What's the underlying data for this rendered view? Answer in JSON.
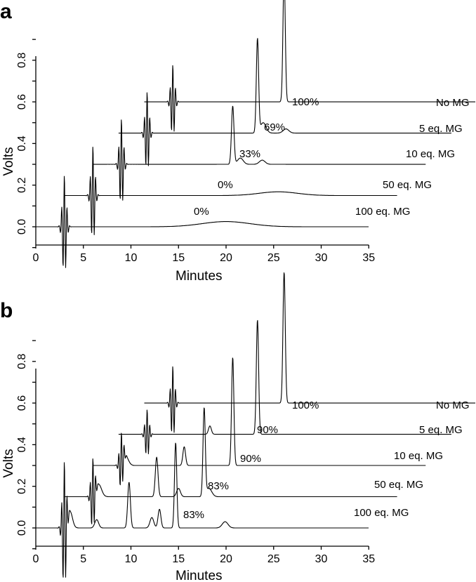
{
  "chart_data": [
    {
      "type": "line",
      "panel": "a",
      "xlabel": "Minutes",
      "ylabel": "Volts",
      "xlim": [
        0,
        35
      ],
      "ylim": [
        -0.1,
        0.9
      ],
      "x_ticks": [
        "0",
        "5",
        "10",
        "15",
        "20",
        "25",
        "30",
        "35"
      ],
      "y_ticks": [
        "0.0",
        "0.2",
        "0.4",
        "0.6",
        "0.8"
      ],
      "series": [
        {
          "name": "100 eq. MG",
          "percent": "0%",
          "baseline_volts": 0.0,
          "x_offset_min": 0.0,
          "x_end_min": 35.0,
          "peaks": [
            [
              3.0,
              0.25,
              0.15
            ],
            [
              20.0,
              0.025,
              2.5
            ]
          ]
        },
        {
          "name": "50 eq. MG",
          "percent": "0%",
          "baseline_volts": 0.15,
          "x_offset_min": 3.0,
          "x_end_min": 38.0,
          "peaks": [
            [
              3.0,
              0.24,
              0.15
            ],
            [
              22.5,
              0.018,
              2.0
            ]
          ]
        },
        {
          "name": "10 eq. MG",
          "percent": "33%",
          "baseline_volts": 0.3,
          "x_offset_min": 6.0,
          "x_end_min": 41.0,
          "peaks": [
            [
              3.0,
              0.22,
              0.15
            ],
            [
              14.7,
              0.28,
              0.13
            ],
            [
              15.5,
              0.03,
              0.3
            ],
            [
              17.8,
              0.02,
              0.3
            ]
          ]
        },
        {
          "name": "5 eq. MG",
          "percent": "69%",
          "baseline_volts": 0.45,
          "x_offset_min": 8.7,
          "x_end_min": 43.7,
          "peaks": [
            [
              3.0,
              0.2,
              0.15
            ],
            [
              14.6,
              0.45,
              0.12
            ],
            [
              15.2,
              0.05,
              0.3
            ],
            [
              17.6,
              0.02,
              0.3
            ]
          ]
        },
        {
          "name": "No MG",
          "percent": "100%",
          "baseline_volts": 0.6,
          "x_offset_min": 11.4,
          "x_end_min": 46.4,
          "peaks": [
            [
              3.0,
              0.18,
              0.15
            ],
            [
              14.7,
              0.62,
              0.12
            ]
          ]
        }
      ]
    },
    {
      "type": "line",
      "panel": "b",
      "xlabel": "Minutes",
      "ylabel": "Volts",
      "xlim": [
        0,
        35
      ],
      "ylim": [
        -0.1,
        0.9
      ],
      "x_ticks": [
        "0",
        "5",
        "10",
        "15",
        "20",
        "25",
        "30",
        "35"
      ],
      "y_ticks": [
        "0.0",
        "0.2",
        "0.4",
        "0.6",
        "0.8"
      ],
      "series": [
        {
          "name": "100 eq. MG",
          "percent": "83%",
          "baseline_volts": 0.0,
          "x_offset_min": 0.0,
          "x_end_min": 35.0,
          "peaks": [
            [
              3.0,
              0.32,
              0.12
            ],
            [
              3.6,
              0.08,
              0.25
            ],
            [
              6.4,
              0.04,
              0.2
            ],
            [
              9.8,
              0.22,
              0.14
            ],
            [
              12.2,
              0.05,
              0.2
            ],
            [
              13.0,
              0.09,
              0.15
            ],
            [
              14.7,
              0.41,
              0.12
            ],
            [
              19.9,
              0.03,
              0.3
            ]
          ]
        },
        {
          "name": "50 eq. MG",
          "percent": "83%",
          "baseline_volts": 0.15,
          "x_offset_min": 3.0,
          "x_end_min": 38.0,
          "peaks": [
            [
              3.0,
              0.18,
              0.12
            ],
            [
              3.6,
              0.06,
              0.3
            ],
            [
              9.7,
              0.19,
              0.14
            ],
            [
              12.0,
              0.04,
              0.2
            ],
            [
              14.7,
              0.42,
              0.12
            ],
            [
              15.2,
              0.04,
              0.3
            ]
          ]
        },
        {
          "name": "10 eq. MG",
          "percent": "90%",
          "baseline_volts": 0.3,
          "x_offset_min": 6.0,
          "x_end_min": 41.0,
          "peaks": [
            [
              3.0,
              0.14,
              0.12
            ],
            [
              3.4,
              0.05,
              0.3
            ],
            [
              9.6,
              0.09,
              0.14
            ],
            [
              14.7,
              0.52,
              0.12
            ]
          ]
        },
        {
          "name": "5 eq. MG",
          "percent": "90%",
          "baseline_volts": 0.45,
          "x_offset_min": 8.7,
          "x_end_min": 43.7,
          "peaks": [
            [
              3.0,
              0.12,
              0.12
            ],
            [
              9.6,
              0.04,
              0.15
            ],
            [
              14.6,
              0.55,
              0.12
            ]
          ]
        },
        {
          "name": "No MG",
          "percent": "100%",
          "baseline_volts": 0.6,
          "x_offset_min": 11.4,
          "x_end_min": 46.4,
          "peaks": [
            [
              3.0,
              0.18,
              0.15
            ],
            [
              14.7,
              0.63,
              0.12
            ]
          ]
        }
      ]
    }
  ]
}
